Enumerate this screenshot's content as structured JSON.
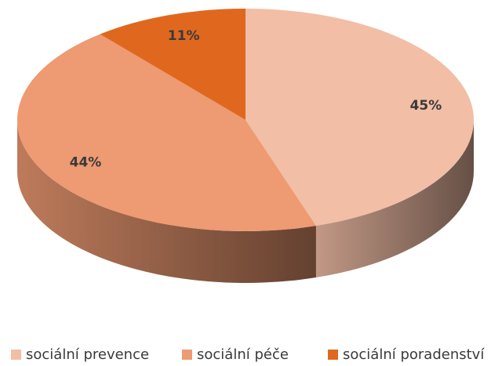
{
  "chart_data": {
    "type": "pie",
    "categories": [
      "sociální prevence",
      "sociální péče",
      "sociální poradenství"
    ],
    "values": [
      45,
      44,
      11
    ],
    "value_labels": [
      "45%",
      "44%",
      "11%"
    ],
    "colors": [
      "#f2bea6",
      "#ee9a72",
      "#e0681e"
    ],
    "legend": "bottom"
  }
}
